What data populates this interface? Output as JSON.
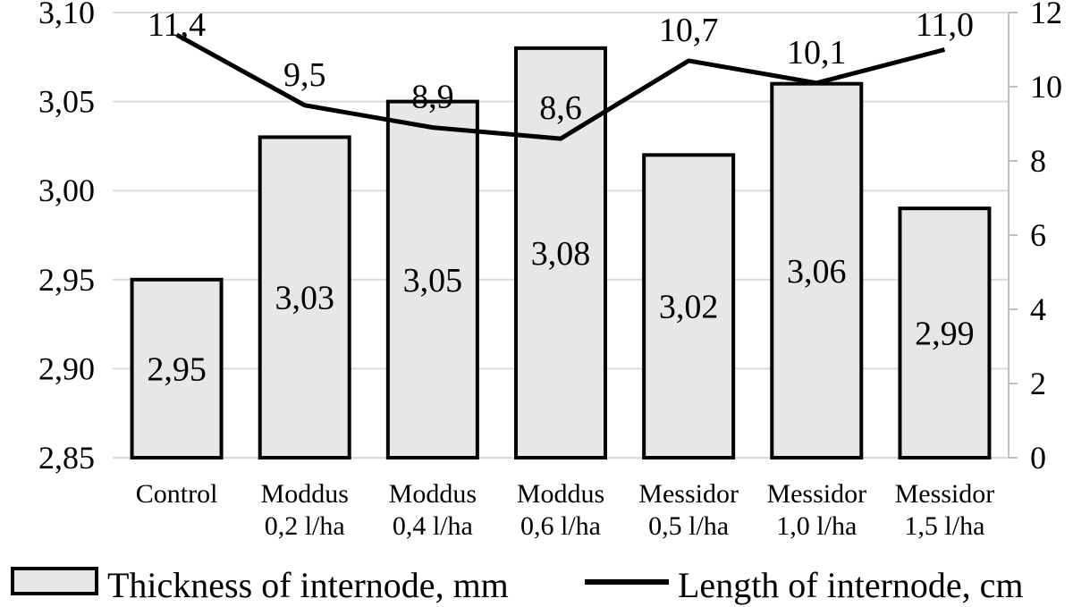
{
  "chart_data": {
    "type": "bar+line",
    "categories": [
      [
        "Control"
      ],
      [
        "Moddus",
        "0,2 l/ha"
      ],
      [
        "Moddus",
        "0,4 l/ha"
      ],
      [
        "Moddus",
        "0,6 l/ha"
      ],
      [
        "Messidor",
        "0,5 l/ha"
      ],
      [
        "Messidor",
        "1,0 l/ha"
      ],
      [
        "Messidor",
        "1,5 l/ha"
      ]
    ],
    "series": [
      {
        "name": "Thickness of internode, mm",
        "kind": "bar",
        "axis": "left",
        "values": [
          2.95,
          3.03,
          3.05,
          3.08,
          3.02,
          3.06,
          2.99
        ],
        "labels": [
          "2,95",
          "3,03",
          "3,05",
          "3,08",
          "3,02",
          "3,06",
          "2,99"
        ]
      },
      {
        "name": "Length of internode, cm",
        "kind": "line",
        "axis": "right",
        "values": [
          11.4,
          9.5,
          8.9,
          8.6,
          10.7,
          10.1,
          11.0
        ],
        "labels": [
          "11,4",
          "9,5",
          "8,9",
          "8,6",
          "10,7",
          "10,1",
          "11,0"
        ]
      }
    ],
    "y_left": {
      "range": [
        2.85,
        3.1
      ],
      "ticks": [
        2.85,
        2.9,
        2.95,
        3.0,
        3.05,
        3.1
      ],
      "tick_labels": [
        "2,85",
        "2,90",
        "2,95",
        "3,00",
        "3,05",
        "3,10"
      ]
    },
    "y_right": {
      "range": [
        0,
        12
      ],
      "ticks": [
        0,
        2,
        4,
        6,
        8,
        10,
        12
      ],
      "tick_labels": [
        "0",
        "2",
        "4",
        "6",
        "8",
        "10",
        "12"
      ]
    },
    "grid": true,
    "legend": "bottom",
    "colors": {
      "bar_fill": "#e8e6e7",
      "bar_stroke": "#000000",
      "line": "#000000",
      "grid": "#d9d9d9",
      "axis": "#bfbfbf"
    }
  }
}
